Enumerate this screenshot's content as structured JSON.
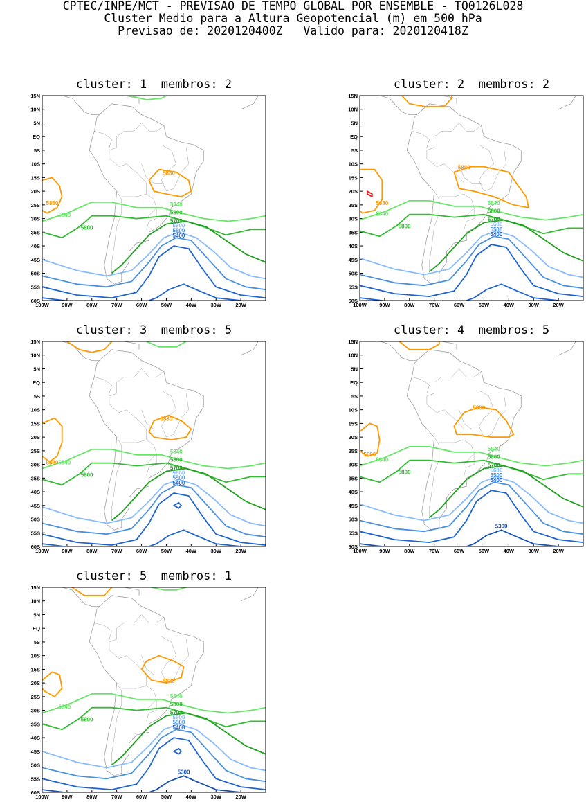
{
  "header": {
    "line1": "CPTEC/INPE/MCT - PREVISAO DE TEMPO GLOBAL POR ENSEMBLE - TQ0126L028",
    "line2": "Cluster Medio para a Altura Geopotencial (m) em 500 hPa",
    "line3": "Previsao de: 2020120400Z   Valido para: 2020120418Z"
  },
  "chart_data": [
    {
      "type": "contour",
      "title": "cluster: 1  membros: 2",
      "xtick_labels": [
        "100W",
        "90W",
        "80W",
        "70W",
        "60W",
        "50W",
        "40W",
        "30W",
        "20W"
      ],
      "ytick_labels": [
        "15N",
        "10N",
        "5N",
        "EQ",
        "5S",
        "10S",
        "15S",
        "20S",
        "25S",
        "30S",
        "35S",
        "40S",
        "45S",
        "50S",
        "55S",
        "60S"
      ],
      "lon_range": [
        -100,
        -10
      ],
      "lat_range": [
        -60,
        15
      ],
      "contour_labels": [
        "5880",
        "5880",
        "5840",
        "5840",
        "5800",
        "5800",
        "5700",
        "5600",
        "5500",
        "5400"
      ]
    },
    {
      "type": "contour",
      "title": "cluster: 2  membros: 2",
      "xtick_labels": [
        "100W",
        "90W",
        "80W",
        "70W",
        "60W",
        "50W",
        "40W",
        "30W",
        "20W"
      ],
      "ytick_labels": [
        "15N",
        "10N",
        "5N",
        "EQ",
        "5S",
        "10S",
        "15S",
        "20S",
        "25S",
        "30S",
        "35S",
        "40S",
        "45S",
        "50S",
        "55S",
        "60S"
      ],
      "lon_range": [
        -100,
        -10
      ],
      "lat_range": [
        -60,
        15
      ],
      "contour_labels": [
        "5880",
        "5880",
        "5840",
        "5840",
        "5800",
        "5800",
        "5700",
        "5600",
        "5500",
        "5400"
      ]
    },
    {
      "type": "contour",
      "title": "cluster: 3  membros: 5",
      "xtick_labels": [
        "100W",
        "90W",
        "80W",
        "70W",
        "60W",
        "50W",
        "40W",
        "30W",
        "20W"
      ],
      "ytick_labels": [
        "15N",
        "10N",
        "5N",
        "EQ",
        "5S",
        "10S",
        "15S",
        "20S",
        "25S",
        "30S",
        "35S",
        "40S",
        "45S",
        "50S",
        "55S",
        "60S"
      ],
      "lon_range": [
        -100,
        -10
      ],
      "lat_range": [
        -60,
        15
      ],
      "contour_labels": [
        "5880",
        "5880",
        "5840",
        "5840",
        "5800",
        "5800",
        "5700",
        "5600",
        "5500",
        "5400"
      ]
    },
    {
      "type": "contour",
      "title": "cluster: 4  membros: 5",
      "xtick_labels": [
        "100W",
        "90W",
        "80W",
        "70W",
        "60W",
        "50W",
        "40W",
        "30W",
        "20W"
      ],
      "ytick_labels": [
        "15N",
        "10N",
        "5N",
        "EQ",
        "5S",
        "10S",
        "15S",
        "20S",
        "25S",
        "30S",
        "35S",
        "40S",
        "45S",
        "50S",
        "55S",
        "60S"
      ],
      "lon_range": [
        -100,
        -10
      ],
      "lat_range": [
        -60,
        15
      ],
      "contour_labels": [
        "5880",
        "5880",
        "5840",
        "5840",
        "5800",
        "5800",
        "5700",
        "5600",
        "5500",
        "5400",
        "5300"
      ]
    },
    {
      "type": "contour",
      "title": "cluster: 5  membros: 1",
      "xtick_labels": [
        "100W",
        "90W",
        "80W",
        "70W",
        "60W",
        "50W",
        "40W",
        "30W",
        "20W"
      ],
      "ytick_labels": [
        "15N",
        "10N",
        "5N",
        "EQ",
        "5S",
        "10S",
        "15S",
        "20S",
        "25S",
        "30S",
        "35S",
        "40S",
        "45S",
        "50S",
        "55S",
        "60S"
      ],
      "lon_range": [
        -100,
        -10
      ],
      "lat_range": [
        -60,
        15
      ],
      "contour_labels": [
        "5880",
        "5840",
        "5840",
        "5800",
        "5800",
        "5700",
        "5600",
        "5500",
        "5400",
        "5300"
      ]
    }
  ],
  "colors": {
    "c5880": "#ff9900",
    "c5840": "#66e666",
    "c5800": "#33bb33",
    "c5700": "#1fa01f",
    "c5600": "#88bbff",
    "c5500": "#4a90e0",
    "c5400": "#1e64d0",
    "c5300": "#1450b4",
    "red": "#e02020",
    "coast": "#a0a0a0"
  }
}
